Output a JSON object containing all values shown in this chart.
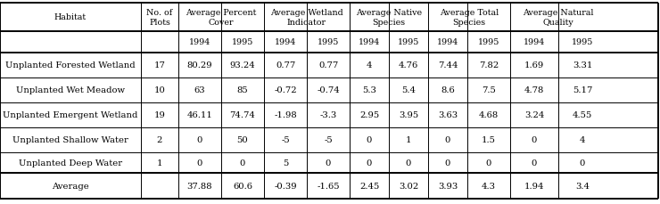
{
  "rows": [
    [
      "Unplanted Forested Wetland",
      "17",
      "80.29",
      "93.24",
      "0.77",
      "0.77",
      "4",
      "4.76",
      "7.44",
      "7.82",
      "1.69",
      "3.31"
    ],
    [
      "Unplanted Wet Meadow",
      "10",
      "63",
      "85",
      "-0.72",
      "-0.74",
      "5.3",
      "5.4",
      "8.6",
      "7.5",
      "4.78",
      "5.17"
    ],
    [
      "Unplanted Emergent Wetland",
      "19",
      "46.11",
      "74.74",
      "-1.98",
      "-3.3",
      "2.95",
      "3.95",
      "3.63",
      "4.68",
      "3.24",
      "4.55"
    ],
    [
      "Unplanted Shallow Water",
      "2",
      "0",
      "50",
      "-5",
      "-5",
      "0",
      "1",
      "0",
      "1.5",
      "0",
      "4"
    ],
    [
      "Unplanted Deep Water",
      "1",
      "0",
      "0",
      "5",
      "0",
      "0",
      "0",
      "0",
      "0",
      "0",
      "0"
    ]
  ],
  "avg_row": [
    "Average",
    "",
    "37.88",
    "60.6",
    "-0.39",
    "-1.65",
    "2.45",
    "3.02",
    "3.93",
    "4.3",
    "1.94",
    "3.4"
  ],
  "group_labels": [
    "Average Percent\nCover",
    "Average Wetland\nIndicator",
    "Average Native\nSpecies",
    "Average Total\nSpecies",
    "Average Natural\nQuality"
  ],
  "years": [
    "1994",
    "1995"
  ],
  "habitat_label": "Habitat",
  "noplots_label": "No. of\nPlots",
  "bg_color": "#ffffff",
  "font_size": 7.2,
  "header_font_size": 6.8,
  "col_boundaries": [
    0,
    158,
    200,
    248,
    296,
    344,
    392,
    436,
    480,
    524,
    572,
    626,
    680,
    738
  ],
  "row_boundaries": [
    226,
    194,
    170,
    142,
    114,
    86,
    58,
    35,
    6
  ],
  "lw_thin": 0.7,
  "lw_thick": 1.4
}
